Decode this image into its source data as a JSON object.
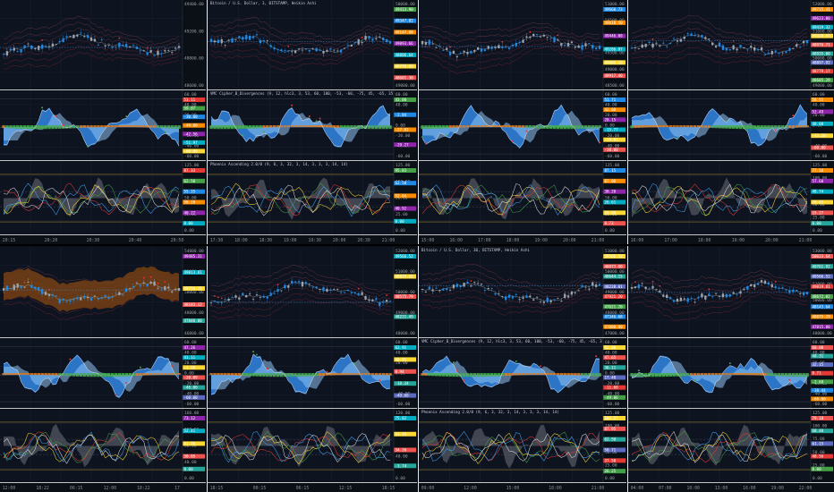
{
  "layout_name": "4-up TradingView chart grid",
  "colors": {
    "background": "#0e1320",
    "separator": "#e6e6e6",
    "grid": "#1a2133",
    "candle_up": "#9ea3ad",
    "candle_down": "#1e88e5",
    "wave_blue": "#2f7fd8",
    "wave_light": "#8fc3f2",
    "mfi_green": "#3fae49",
    "mfi_orange": "#e07b18",
    "band_orange": "#8a4a10",
    "phoenix_gray": "#6b6f78",
    "phoenix_red": "#e53935",
    "phoenix_green": "#43a047",
    "phoenix_yellow": "#fdd835",
    "phoenix_blue": "#42a5f5",
    "phoenix_white": "#e0e0e0",
    "level_line": "#fdd835"
  },
  "panels": [
    {
      "id": "top-left",
      "price_title": "",
      "vmc_title": "",
      "phoenix_title": "",
      "price_axis_labels": [
        "49400.00",
        "49200.00",
        "48800.00",
        "48600.00"
      ],
      "price_tags": [],
      "vmc_axis_labels": [
        "60.00",
        "40.00",
        "20.00",
        "0.00",
        "-20.00",
        "-40.00",
        "-60.00"
      ],
      "vmc_tags": [
        "53.11",
        "59.07",
        "-30.00",
        "-40.00",
        "-42.56",
        "-51.97",
        "-60.00"
      ],
      "phoenix_axis_labels": [
        "125.00",
        "100.00",
        "50.00",
        "25.00",
        "0.00"
      ],
      "phoenix_tags": [
        "87.33",
        "62.50",
        "55.35",
        "50.28",
        "40.22",
        "0.00"
      ],
      "x_labels": [
        "20:15",
        "20:20",
        "20:30",
        "20:40",
        "20:50"
      ]
    },
    {
      "id": "top-second",
      "price_title": "Bitcoin / U.S. Dollar, 3, BITSTAMP, Heikin Ashi",
      "vmc_title": "VMC Cipher_B_Divergences (9, 12, hlc3, 3, 53, 60, 100, -53, -60, -75, 45, -65, 35, -40, 60, 100, -53, 80, 30, close, 14, 80, 90, 80, 30, close, 14, 90, 80, 150)",
      "phoenix_title": "Phoenix Ascending 2.0/0 (9, 6, 3, 32, 3, 14, 3, 3, 3, 14, 14)",
      "price_axis_labels": [
        "50000.00",
        "49500.00",
        "49000.00"
      ],
      "price_tags": [
        "49413.90",
        "49347.82",
        "49147.00",
        "49093.66",
        "48806.64",
        "48776.00",
        "48681.30"
      ],
      "vmc_axis_labels": [
        "60.00",
        "40.00",
        "20.00",
        "0.00",
        "-20.00",
        "-40.00",
        "-60.00"
      ],
      "vmc_tags": [
        "43.00",
        "-2.84",
        "-27.02",
        "-29.27"
      ],
      "phoenix_axis_labels": [
        "125.00",
        "100.00",
        "50.00",
        "25.00",
        "0.00"
      ],
      "phoenix_tags": [
        "95.83",
        "62.50",
        "52.04",
        "40.92",
        "0.00"
      ],
      "x_labels": [
        "17:30",
        "18:00",
        "18:30",
        "19:00",
        "19:30",
        "20:00",
        "20:30",
        "21:00"
      ]
    },
    {
      "id": "top-third",
      "price_title": "",
      "vmc_title": "",
      "phoenix_title": "",
      "price_axis_labels": [
        "51000.00",
        "50500.00",
        "50000.00",
        "49500.00",
        "49000.00",
        "48500.00"
      ],
      "price_tags": [
        "49660.73",
        "49618.50",
        "49446.00",
        "49206.87",
        "49069.19",
        "48917.40"
      ],
      "vmc_axis_labels": [
        "60.00",
        "40.00",
        "20.00",
        "0.00",
        "-20.00",
        "-40.00",
        "-60.00"
      ],
      "vmc_tags": [
        "51.71",
        "42.08",
        "28.15",
        "-15.77",
        "-18.81",
        "-30.00"
      ],
      "phoenix_axis_labels": [
        "125.00",
        "100.00",
        "50.00",
        "25.00",
        "0.00"
      ],
      "phoenix_tags": [
        "87.15",
        "67.00",
        "38.20",
        "26.61",
        "20.00",
        "8.73"
      ],
      "x_labels": [
        "15:00",
        "16:00",
        "17:00",
        "18:00",
        "19:00",
        "20:00",
        "21:00"
      ]
    },
    {
      "id": "top-right",
      "price_title": "",
      "vmc_title": "",
      "phoenix_title": "",
      "price_axis_labels": [
        "52000.00",
        "51000.00",
        "50000.00",
        "49000.00"
      ],
      "price_tags": [
        "49715.41",
        "49623.00",
        "49419.32",
        "49328.57",
        "48976.71",
        "48935.00",
        "48897.92",
        "48779.17",
        "48685.29"
      ],
      "vmc_axis_labels": [
        "60.00",
        "40.00",
        "20.00",
        "0.00",
        "-20.00",
        "-40.00",
        "-60.00"
      ],
      "vmc_tags": [
        "58.55",
        "52.49",
        "48.00",
        "-45.20",
        "-60.00"
      ],
      "phoenix_axis_labels": [
        "125.00",
        "100.00",
        "75.00",
        "50.00",
        "25.00",
        "0.00"
      ],
      "phoenix_tags": [
        "77.10",
        "57.60",
        "48.74",
        "29.45",
        "15.27",
        "0.00"
      ],
      "x_labels": [
        "16:00",
        "17:00",
        "18:00",
        "19:00",
        "20:00",
        "21:00"
      ]
    },
    {
      "id": "bottom-left",
      "price_title": "",
      "vmc_title": "",
      "phoenix_title": "",
      "price_axis_labels": [
        "54000.00",
        "52000.00",
        "50000.00",
        "48000.00",
        "46000.00"
      ],
      "price_tags": [
        "49485.31",
        "49013.81",
        "48754.15",
        "48183.12",
        "47840.00"
      ],
      "vmc_axis_labels": [
        "60.00",
        "40.00",
        "20.00",
        "0.00",
        "-20.00",
        "-40.00",
        "-60.00"
      ],
      "vmc_tags": [
        "47.26",
        "41.11",
        "-1.28",
        "-20.09",
        "-46.00",
        "-60.00"
      ],
      "phoenix_axis_labels": [
        "160.00",
        "120.00",
        "80.00",
        "40.00",
        "0.00"
      ],
      "phoenix_tags": [
        "73.12",
        "52.41",
        "41.76",
        "30.05",
        "0.00"
      ],
      "x_labels": [
        "12:00",
        "18:22",
        "06:15",
        "12:00",
        "18:22",
        "17"
      ]
    },
    {
      "id": "bottom-second",
      "price_title": "",
      "vmc_title": "",
      "phoenix_title": "",
      "price_axis_labels": [
        "52000.00",
        "51000.00",
        "50000.00",
        "49000.00",
        "48000.00"
      ],
      "price_tags": [
        "49566.52",
        "48875.81",
        "48575.79",
        "48221.49"
      ],
      "vmc_axis_labels": [
        "60.00",
        "40.00",
        "20.00",
        "0.00",
        "-20.00",
        "-40.00",
        "-60.00"
      ],
      "vmc_tags": [
        "62.91",
        "40.01",
        "8.94",
        "-10.34",
        "-49.66"
      ],
      "phoenix_axis_labels": [
        "120.00",
        "80.00",
        "40.00",
        "0.00"
      ],
      "phoenix_tags": [
        "75.82",
        "43.19",
        "34.26",
        "-3.74"
      ],
      "x_labels": [
        "18:15",
        "00:15",
        "06:15",
        "12:15",
        "18:15"
      ]
    },
    {
      "id": "bottom-third",
      "price_title": "Bitcoin / U.S. Dollar, 30, BITSTAMP, Heikin Ashi",
      "vmc_title": "VMC Cipher_B_Divergences (9, 12, hlc3, 3, 53, 60, 100, -53, -60, -75, 45, -65, 35, -40, 60, 100, 2.5, close, 14, 80, 90, 80, 30, close, 14, 90, 80, 150)",
      "phoenix_title": "Phoenix Ascending 2.0/0 (9, 6, 3, 32, 3, 14, 3, 3, 3, 14, 14)",
      "price_axis_labels": [
        "51000.00",
        "50000.00",
        "49000.00",
        "48000.00",
        "47000.00"
      ],
      "price_tags": [
        "49566.52",
        "48873.00",
        "48644.15",
        "48220.01",
        "47921.20",
        "47621.20",
        "47346.68",
        "47000.00"
      ],
      "vmc_axis_labels": [
        "60.00",
        "40.00",
        "20.00",
        "0.00",
        "-20.00",
        "-40.00",
        "-60.00"
      ],
      "vmc_tags": [
        "52.00",
        "47.65",
        "36.11",
        "17.40",
        "-11.68",
        "-49.06"
      ],
      "phoenix_axis_labels": [
        "125.00",
        "100.00",
        "75.00",
        "50.00",
        "25.00",
        "0.00"
      ],
      "phoenix_tags": [
        "102.57",
        "87.95",
        "62.50",
        "50.71",
        "37.50",
        "26.25"
      ],
      "x_labels": [
        "09:00",
        "12:00",
        "15:00",
        "18:00",
        "21:00"
      ]
    },
    {
      "id": "bottom-right",
      "price_title": "",
      "vmc_title": "",
      "phoenix_title": "",
      "price_axis_labels": [
        "53000.00",
        "52000.00",
        "51000.00",
        "50000.00",
        "49000.00",
        "48000.00"
      ],
      "price_tags": [
        "50623.64",
        "49761.92",
        "49566.52",
        "49019.81",
        "48672.02",
        "48143.64",
        "48075.29",
        "47815.80"
      ],
      "vmc_axis_labels": [
        "60.00",
        "40.00",
        "20.00",
        "0.00",
        "-20.00",
        "-40.00",
        "-60.00"
      ],
      "vmc_tags": [
        "60.00",
        "48.31",
        "32.15",
        "8.71",
        "-2.68",
        "-38.44",
        "-60.00"
      ],
      "phoenix_axis_labels": [
        "125.00",
        "100.00",
        "75.00",
        "50.00",
        "25.00",
        "0.00"
      ],
      "phoenix_tags": [
        "79.18",
        "68.40",
        "61.15",
        "48.56",
        "0.00"
      ],
      "x_labels": [
        "04:00",
        "07:00",
        "10:00",
        "13:00",
        "16:00",
        "19:00",
        "22:00"
      ]
    }
  ],
  "chart_data": {
    "type": "line",
    "title": "",
    "instrument": "Bitcoin / U.S. Dollar",
    "exchange": "BITSTAMP",
    "candle_style": "Heikin Ashi",
    "price_range_visible": [
      48600,
      50000
    ],
    "indicators": [
      "VMC Cipher_B_Divergences",
      "Phoenix Ascending 2.0/0"
    ],
    "vmc_range": [
      -60,
      60
    ],
    "phoenix_range": [
      0,
      125
    ],
    "grid": true,
    "legend": "top-left"
  }
}
